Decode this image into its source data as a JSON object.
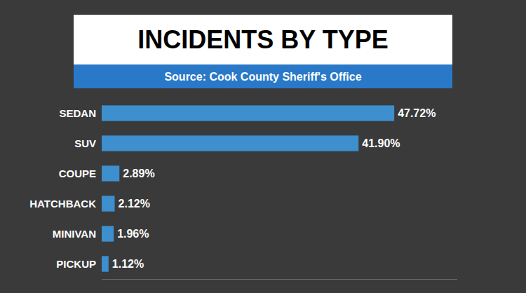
{
  "chart_data": {
    "type": "bar",
    "orientation": "horizontal",
    "title": "INCIDENTS BY TYPE",
    "subtitle": "Source: Cook County Sheriff's Office",
    "categories": [
      "SEDAN",
      "SUV",
      "COUPE",
      "HATCHBACK",
      "MINIVAN",
      "PICKUP"
    ],
    "values": [
      47.72,
      41.9,
      2.89,
      2.12,
      1.96,
      1.12
    ],
    "value_labels": [
      "47.72%",
      "41.90%",
      "2.89%",
      "2.12%",
      "1.96%",
      "1.12%"
    ],
    "color": "#3d8fce",
    "xlim": [
      0,
      58
    ],
    "data_labels": true,
    "tick_labels": "y",
    "grid": false
  }
}
